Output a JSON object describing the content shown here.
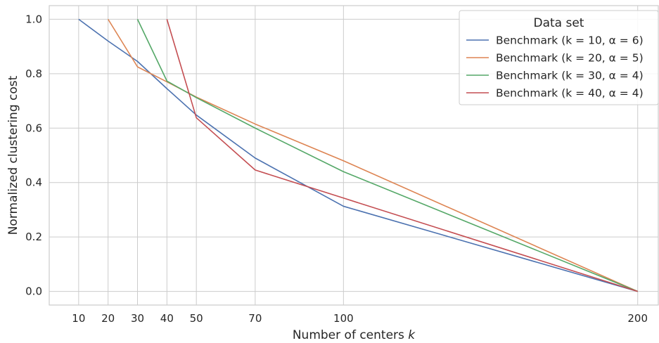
{
  "chart_data": {
    "type": "line",
    "xlabel": "Number of centers k",
    "ylabel": "Normalized clustering cost",
    "xlim": [
      0,
      207
    ],
    "ylim": [
      -0.05,
      1.05
    ],
    "xticks": [
      10,
      20,
      30,
      40,
      50,
      70,
      100,
      200
    ],
    "yticks": [
      0.0,
      0.2,
      0.4,
      0.6,
      0.8,
      1.0
    ],
    "grid": true,
    "legend": {
      "title": "Data set",
      "placement": "top-right"
    },
    "series": [
      {
        "name": "Benchmark (k = 10, α = 6)",
        "color": "#4c72b0",
        "x": [
          10,
          20,
          30,
          40,
          50,
          70,
          100,
          200
        ],
        "y": [
          1.0,
          0.92,
          0.845,
          0.745,
          0.648,
          0.49,
          0.313,
          0.0
        ]
      },
      {
        "name": "Benchmark (k = 20, α = 5)",
        "color": "#dd8452",
        "x": [
          20,
          30,
          40,
          50,
          70,
          100,
          200
        ],
        "y": [
          1.0,
          0.825,
          0.77,
          0.714,
          0.615,
          0.48,
          0.0
        ]
      },
      {
        "name": "Benchmark (k = 30, α = 4)",
        "color": "#55a868",
        "x": [
          30,
          40,
          50,
          70,
          100,
          200
        ],
        "y": [
          1.0,
          0.773,
          0.712,
          0.6,
          0.44,
          0.0
        ]
      },
      {
        "name": "Benchmark (k = 40, α = 4)",
        "color": "#c44e52",
        "x": [
          40,
          50,
          70,
          100,
          200
        ],
        "y": [
          1.0,
          0.638,
          0.446,
          0.343,
          0.0
        ]
      }
    ]
  }
}
